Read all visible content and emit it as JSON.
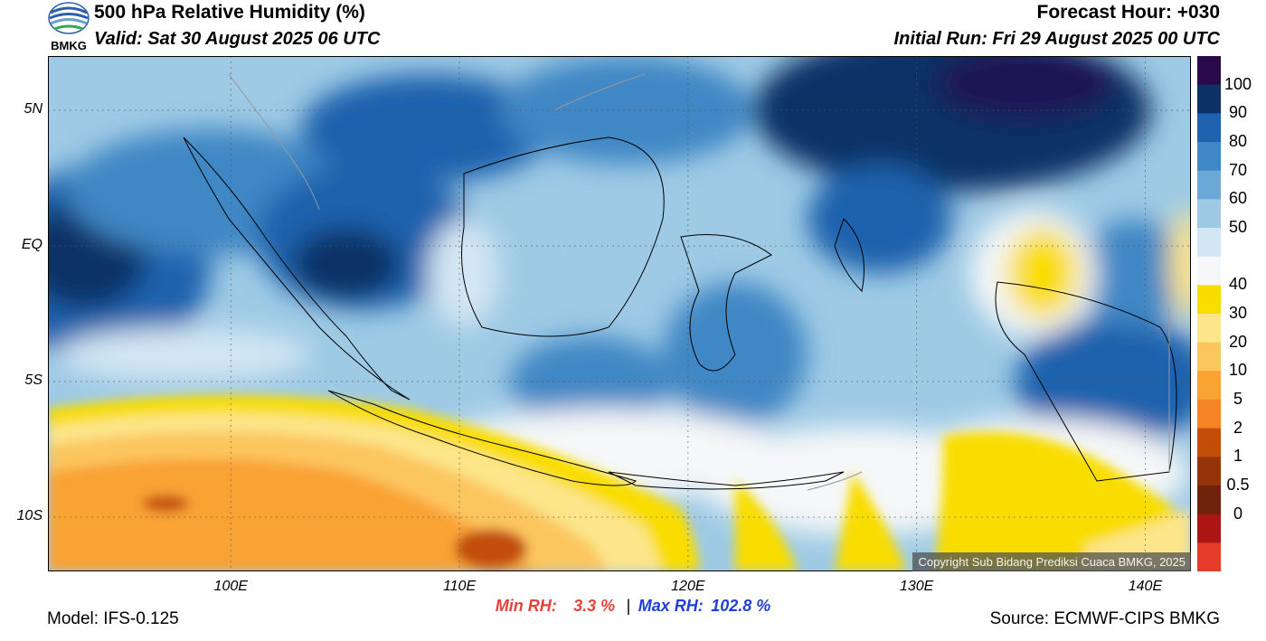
{
  "header": {
    "title": "500 hPa Relative Humidity (%)",
    "valid": "Valid: Sat 30 August 2025 06 UTC",
    "forecast_hour": "Forecast Hour: +030",
    "initial_run": "Initial Run: Fri 29 August 2025 00 UTC"
  },
  "logo": {
    "icon": "bmkg-logo-icon",
    "text": "BMKG"
  },
  "map": {
    "copyright": "Copyright Sub Bidang Prediksi Cuaca BMKG, 2025",
    "lat_labels": [
      "5N",
      "EQ",
      "5S",
      "10S"
    ],
    "lon_labels": [
      "100E",
      "110E",
      "120E",
      "130E",
      "140E"
    ],
    "lat_values": [
      5,
      0,
      -5,
      -10
    ],
    "lon_values": [
      100,
      110,
      120,
      130,
      140
    ],
    "extent": {
      "lon_min": 92,
      "lon_max": 142,
      "lat_min": -12,
      "lat_max": 7
    }
  },
  "colorbar": {
    "labels": [
      "100",
      "90",
      "80",
      "70",
      "60",
      "50",
      "40",
      "30",
      "20",
      "10",
      "5",
      "2",
      "1",
      "0.5",
      "0"
    ],
    "colors": [
      "#2a0a4a",
      "#0b3166",
      "#1f62ad",
      "#3f87c5",
      "#6aa8d8",
      "#9ecae5",
      "#d3e6f3",
      "#f5f7f8",
      "#f9dd00",
      "#fce58a",
      "#fcc65f",
      "#f9a335",
      "#f58426",
      "#c24e0a",
      "#953309",
      "#6e230a",
      "#ad1414",
      "#e53b2a"
    ]
  },
  "stats": {
    "min_label": "Min RH:",
    "min_value": "3.3 %",
    "separator": "|",
    "max_label": "Max RH:",
    "max_value": "102.8 %",
    "min_color": "#e8413a",
    "max_color": "#1f3fd6"
  },
  "footer": {
    "model": "Model: IFS-0.125",
    "source": "Source: ECMWF-CIPS BMKG"
  }
}
